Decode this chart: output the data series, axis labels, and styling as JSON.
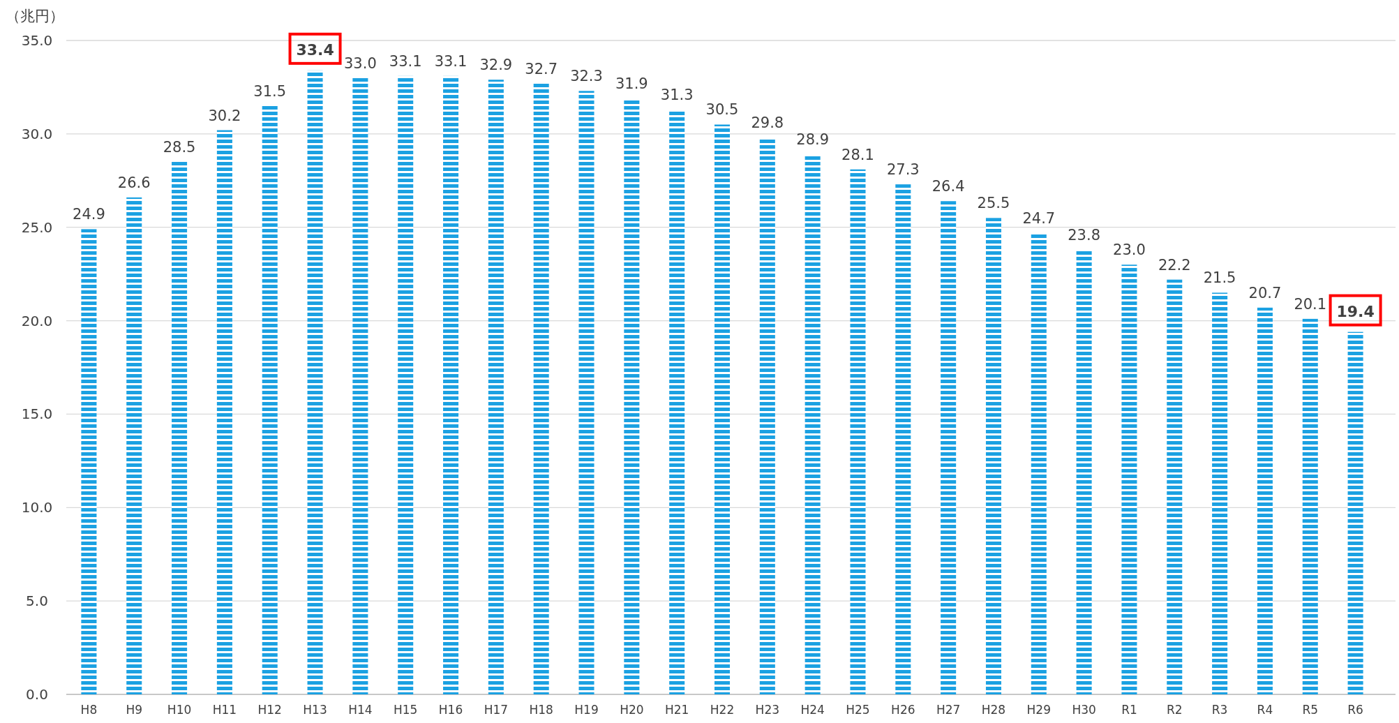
{
  "chart_data": {
    "type": "bar",
    "ylabel": "（兆円）",
    "categories": [
      "H8",
      "H9",
      "H10",
      "H11",
      "H12",
      "H13",
      "H14",
      "H15",
      "H16",
      "H17",
      "H18",
      "H19",
      "H20",
      "H21",
      "H22",
      "H23",
      "H24",
      "H25",
      "H26",
      "H27",
      "H28",
      "H29",
      "H30",
      "R1",
      "R2",
      "R3",
      "R4",
      "R5",
      "R6"
    ],
    "values": [
      24.9,
      26.6,
      28.5,
      30.2,
      31.5,
      33.4,
      33.0,
      33.1,
      33.1,
      32.9,
      32.7,
      32.3,
      31.9,
      31.3,
      30.5,
      29.8,
      28.9,
      28.1,
      27.3,
      26.4,
      25.5,
      24.7,
      23.8,
      23.0,
      22.2,
      21.5,
      20.7,
      20.1,
      19.4
    ],
    "value_labels": [
      "24.9",
      "26.6",
      "28.5",
      "30.2",
      "31.5",
      null,
      "33.0",
      "33.1",
      "33.1",
      "32.9",
      "32.7",
      "32.3",
      "31.9",
      "31.3",
      "30.5",
      "29.8",
      "28.9",
      "28.1",
      "27.3",
      "26.4",
      "25.5",
      "24.7",
      "23.8",
      "23.0",
      "22.2",
      "21.5",
      "20.7",
      "20.1",
      null
    ],
    "annotations": [
      {
        "text": "33.4",
        "x": "H13",
        "y": 33.4
      },
      {
        "text": "19.4",
        "x": "R6",
        "y": 19.4
      }
    ],
    "color": "#1ba1e2",
    "ylim": [
      0,
      35
    ],
    "yticks": [
      {
        "value": 0,
        "label": "0.0"
      },
      {
        "value": 5,
        "label": "5.0"
      },
      {
        "value": 10,
        "label": "10.0"
      },
      {
        "value": 15,
        "label": "15.0"
      },
      {
        "value": 20,
        "label": "20.0"
      },
      {
        "value": 25,
        "label": "25.0"
      },
      {
        "value": 30,
        "label": "30.0"
      },
      {
        "value": 35,
        "label": "35.0"
      }
    ],
    "grid": "y"
  }
}
